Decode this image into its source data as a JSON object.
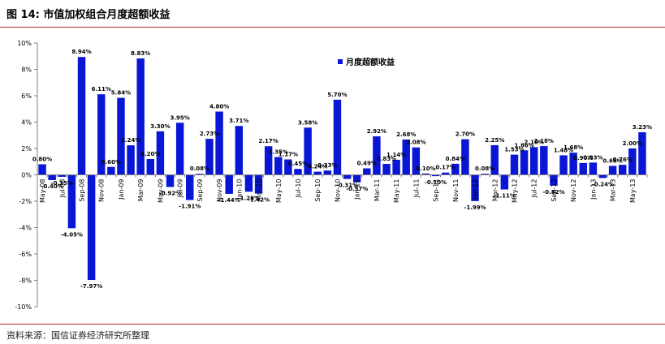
{
  "header": {
    "title": "图 14: 市值加权组合月度超额收益"
  },
  "footer": {
    "source": "资料来源：国信证券经济研究所整理"
  },
  "colors": {
    "bar": "#0a16d6",
    "axis": "#7f7f7f",
    "rule": "#b02a2a"
  },
  "chart_data": {
    "type": "bar",
    "legend": {
      "label": "月度超额收益",
      "position": "top-center"
    },
    "ylim": [
      -10,
      10
    ],
    "yticks": [
      -10,
      -8,
      -6,
      -4,
      -2,
      0,
      2,
      4,
      6,
      8,
      10
    ],
    "ytick_format": "%",
    "grid": false,
    "x_tick_labels": [
      {
        "index": 0,
        "label": "May-08"
      },
      {
        "index": 2,
        "label": "Jul-08"
      },
      {
        "index": 4,
        "label": "Sep-08"
      },
      {
        "index": 6,
        "label": "Nov-08"
      },
      {
        "index": 8,
        "label": "Jan-09"
      },
      {
        "index": 10,
        "label": "Mar-09"
      },
      {
        "index": 12,
        "label": "May-09"
      },
      {
        "index": 14,
        "label": "Jul-09"
      },
      {
        "index": 16,
        "label": "Sep-09"
      },
      {
        "index": 18,
        "label": "Nov-09"
      },
      {
        "index": 20,
        "label": "Jan-10"
      },
      {
        "index": 22,
        "label": "Mar-10"
      },
      {
        "index": 24,
        "label": "May-10"
      },
      {
        "index": 26,
        "label": "Jul-10"
      },
      {
        "index": 28,
        "label": "Sep-10"
      },
      {
        "index": 30,
        "label": "Nov-10"
      },
      {
        "index": 32,
        "label": "Jan-11"
      },
      {
        "index": 34,
        "label": "Mar-11"
      },
      {
        "index": 36,
        "label": "May-11"
      },
      {
        "index": 38,
        "label": "Jul-11"
      },
      {
        "index": 40,
        "label": "Sep-11"
      },
      {
        "index": 42,
        "label": "Nov-11"
      },
      {
        "index": 44,
        "label": "Jan-12"
      },
      {
        "index": 46,
        "label": "Mar-12"
      },
      {
        "index": 48,
        "label": "May-12"
      },
      {
        "index": 50,
        "label": "Jul-12"
      },
      {
        "index": 52,
        "label": "Sep-12"
      },
      {
        "index": 54,
        "label": "Nov-12"
      },
      {
        "index": 56,
        "label": "Jan-13"
      },
      {
        "index": 58,
        "label": "Mar-13"
      },
      {
        "index": 60,
        "label": "May-13"
      }
    ],
    "values": [
      0.8,
      -0.4,
      -0.15,
      -4.05,
      8.94,
      -7.97,
      6.11,
      0.6,
      5.84,
      2.24,
      8.83,
      1.2,
      3.3,
      -0.92,
      3.95,
      -1.91,
      0.08,
      2.73,
      4.8,
      -1.44,
      3.71,
      -1.28,
      -1.42,
      2.17,
      1.35,
      1.17,
      0.45,
      3.58,
      0.24,
      0.33,
      5.7,
      -0.31,
      -0.57,
      0.49,
      2.92,
      0.83,
      1.14,
      2.68,
      2.08,
      0.1,
      -0.1,
      0.17,
      0.84,
      2.7,
      -1.99,
      0.08,
      2.25,
      -1.11,
      1.53,
      1.86,
      2.1,
      2.18,
      -0.82,
      1.48,
      1.68,
      0.9,
      0.93,
      -0.24,
      0.68,
      0.76,
      2.0,
      3.23
    ],
    "data_labels": [
      "0.80%",
      "-0.40%",
      "-0.15%",
      "-4.05%",
      "8.94%",
      "-7.97%",
      "6.11%",
      "0.60%",
      "5.84%",
      "2.24%",
      "8.83%",
      "1.20%",
      "3.30%",
      "-0.92%",
      "3.95%",
      "-1.91%",
      "0.08%",
      "2.73%",
      "4.80%",
      "-1.44%",
      "3.71%",
      "-1.28%",
      "-1.42%",
      "2.17%",
      "1.35%",
      "1.17%",
      "0.45%",
      "3.58%",
      "0.24%",
      "0.33%",
      "5.70%",
      "-0.31%",
      "-0.57%",
      "0.49%",
      "2.92%",
      "0.83%",
      "1.14%",
      "2.68%",
      "2.08%",
      "0.10%",
      "-0.10%",
      "0.17%",
      "0.84%",
      "2.70%",
      "-1.99%",
      "0.08%",
      "2.25%",
      "-1.11%",
      "1.53%",
      "1.86%",
      "2.10%",
      "2.18%",
      "-0.82%",
      "1.48%",
      "1.68%",
      "0.90%",
      "0.93%",
      "-0.24%",
      "0.68%",
      "0.76%",
      "2.00%",
      "3.23%"
    ]
  }
}
